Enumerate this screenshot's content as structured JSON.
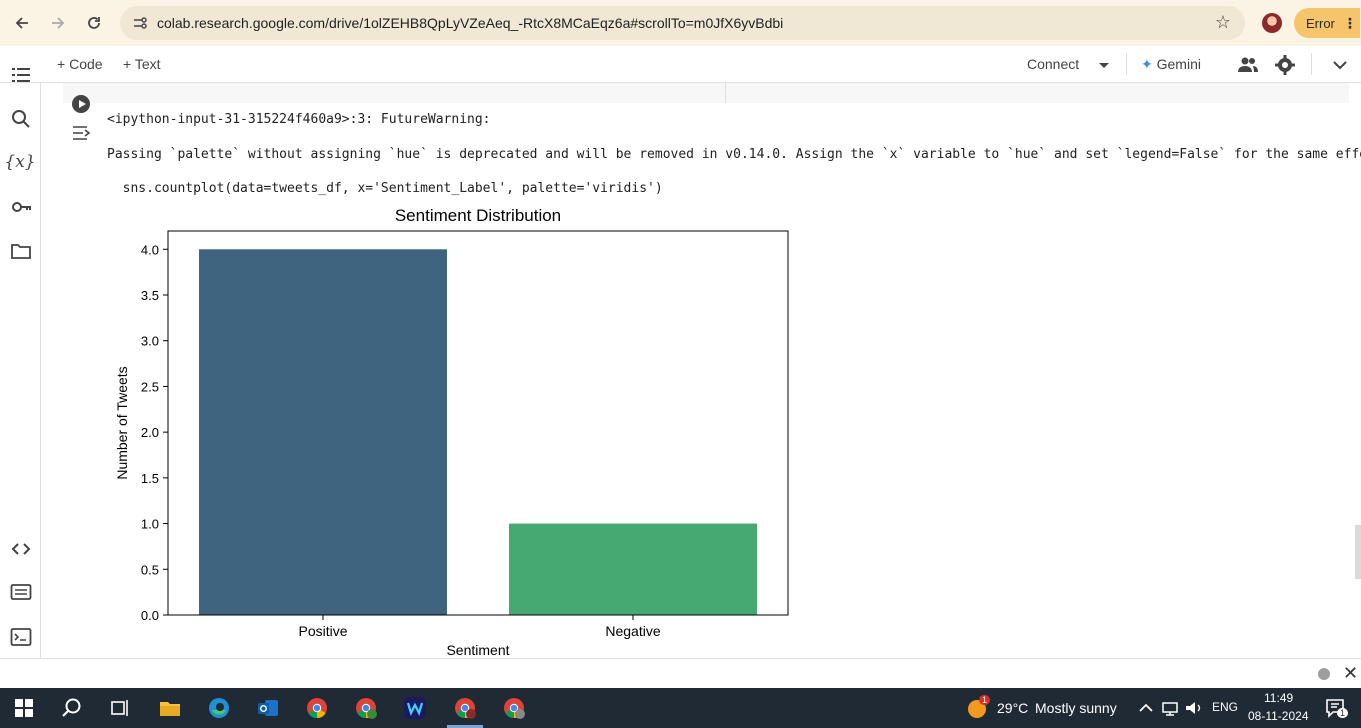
{
  "browser": {
    "url": "colab.research.google.com/drive/1olZEHB8QpLyVZeAeq_-RtcX8MCaEqz6a#scrollTo=m0JfX6yvBdbi",
    "error_label": "Error"
  },
  "toolbar": {
    "code_label": "Code",
    "text_label": "Text",
    "connect_label": "Connect",
    "gemini_label": "Gemini"
  },
  "output": {
    "line1": "<ipython-input-31-315224f460a9>:3: FutureWarning:",
    "line2": "Passing `palette` without assigning `hue` is deprecated and will be removed in v0.14.0. Assign the `x` variable to `hue` and set `legend=False` for the same effe",
    "line3": "  sns.countplot(data=tweets_df, x='Sentiment_Label', palette='viridis')"
  },
  "chart_data": {
    "type": "bar",
    "title": "Sentiment Distribution",
    "xlabel": "Sentiment",
    "ylabel": "Number of Tweets",
    "categories": [
      "Positive",
      "Negative"
    ],
    "values": [
      4,
      1
    ],
    "colors": [
      "#3e6480",
      "#46a972"
    ],
    "ylim": [
      0,
      4.2
    ],
    "yticks": [
      0.0,
      0.5,
      1.0,
      1.5,
      2.0,
      2.5,
      3.0,
      3.5,
      4.0
    ],
    "ytick_labels": [
      "0.0",
      "0.5",
      "1.0",
      "1.5",
      "2.0",
      "2.5",
      "3.0",
      "3.5",
      "4.0"
    ],
    "grid": false,
    "legend": "none"
  },
  "taskbar": {
    "weather_temp": "29°C",
    "weather_desc": "Mostly sunny",
    "weather_badge": "1",
    "language": "ENG",
    "time": "11:49",
    "date": "08-11-2024",
    "notif_count": "1"
  }
}
